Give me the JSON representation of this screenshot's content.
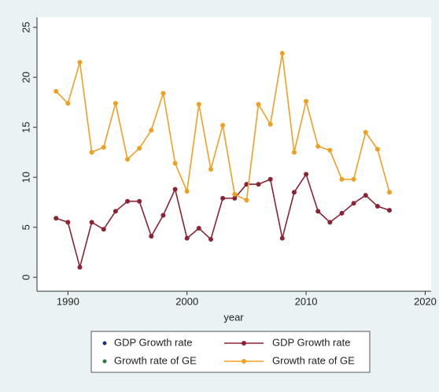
{
  "chart_data": {
    "type": "line",
    "x_label": "year",
    "x": [
      1989,
      1990,
      1991,
      1992,
      1993,
      1994,
      1995,
      1996,
      1997,
      1998,
      1999,
      2000,
      2001,
      2002,
      2003,
      2004,
      2005,
      2006,
      2007,
      2008,
      2009,
      2010,
      2011,
      2012,
      2013,
      2014,
      2015,
      2016,
      2017
    ],
    "xlim": [
      1987.4,
      2020.5
    ],
    "xticks": [
      1990,
      2000,
      2010,
      2020
    ],
    "ylim": [
      -1.4,
      26
    ],
    "yticks": [
      0,
      5,
      10,
      15,
      20,
      25
    ],
    "grid": false,
    "series": [
      {
        "name": "GDP Growth rate",
        "color": "#1a3a6b",
        "mode": "markers",
        "values": [
          5.9,
          5.5,
          1.0,
          5.5,
          4.8,
          6.6,
          7.6,
          7.6,
          4.1,
          6.2,
          8.8,
          3.9,
          4.9,
          3.8,
          7.9,
          7.9,
          9.3,
          9.3,
          9.8,
          3.9,
          8.5,
          10.3,
          6.6,
          5.5,
          6.4,
          7.4,
          8.2,
          7.1,
          6.7
        ]
      },
      {
        "name": "Growth rate of GE",
        "color": "#2e7d32",
        "mode": "markers",
        "values": [
          18.6,
          17.4,
          21.5,
          12.5,
          13.0,
          17.4,
          11.8,
          12.9,
          14.7,
          18.4,
          11.4,
          8.6,
          17.3,
          10.8,
          15.2,
          8.3,
          7.7,
          17.3,
          15.3,
          22.4,
          12.5,
          17.6,
          13.1,
          12.7,
          9.8,
          9.8,
          14.5,
          12.8,
          8.5
        ]
      },
      {
        "name": "GDP Growth rate",
        "color": "#8b2335",
        "mode": "lines+markers",
        "values": [
          5.9,
          5.5,
          1.0,
          5.5,
          4.8,
          6.6,
          7.6,
          7.6,
          4.1,
          6.2,
          8.8,
          3.9,
          4.9,
          3.8,
          7.9,
          7.9,
          9.3,
          9.3,
          9.8,
          3.9,
          8.5,
          10.3,
          6.6,
          5.5,
          6.4,
          7.4,
          8.2,
          7.1,
          6.7
        ]
      },
      {
        "name": "Growth rate of GE",
        "color": "#f0a020",
        "mode": "lines+markers",
        "values": [
          18.6,
          17.4,
          21.5,
          12.5,
          13.0,
          17.4,
          11.8,
          12.9,
          14.7,
          18.4,
          11.4,
          8.6,
          17.3,
          10.8,
          15.2,
          8.3,
          7.7,
          17.3,
          15.3,
          22.4,
          12.5,
          17.6,
          13.1,
          12.7,
          9.8,
          9.8,
          14.5,
          12.8,
          8.5
        ]
      }
    ]
  }
}
